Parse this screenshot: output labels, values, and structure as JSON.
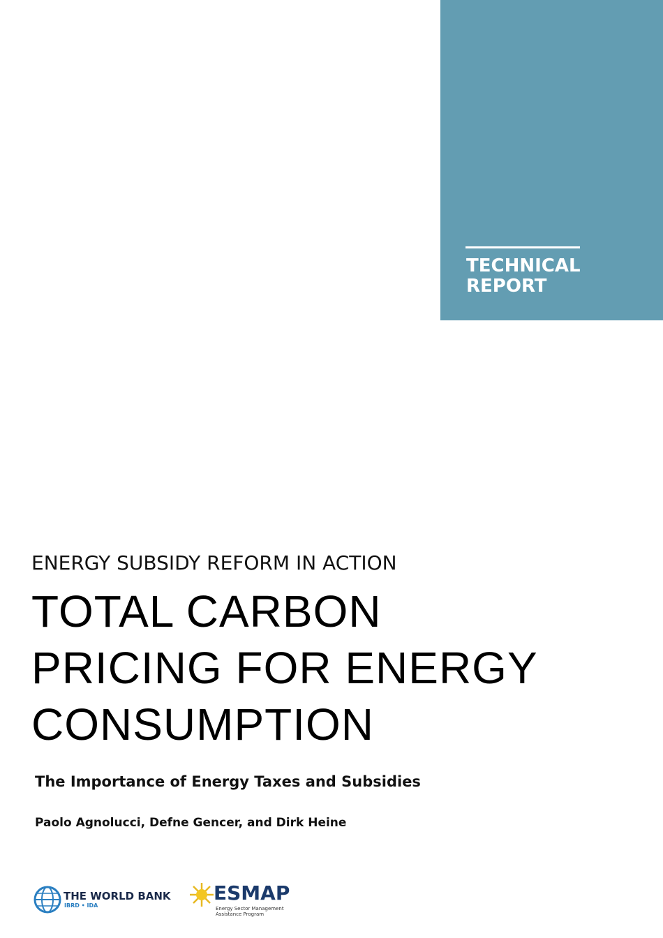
{
  "badge": {
    "lines": [
      "TECHNICAL",
      "REPORT"
    ]
  },
  "series": "ENERGY SUBSIDY REFORM IN ACTION",
  "title": {
    "lines": [
      "TOTAL CARBON",
      "PRICING FOR ENERGY",
      "CONSUMPTION"
    ]
  },
  "subtitle": "The Importance of Energy Taxes and Subsidies",
  "authors": "Paolo Agnolucci, Defne Gencer, and Dirk Heine",
  "logos": {
    "world_bank": {
      "name": "THE WORLD BANK",
      "sub": "IBRD • IDA"
    },
    "esmap": {
      "name": "ESMAP",
      "sub_lines": [
        "Energy Sector Management",
        "Assistance Program"
      ]
    }
  }
}
